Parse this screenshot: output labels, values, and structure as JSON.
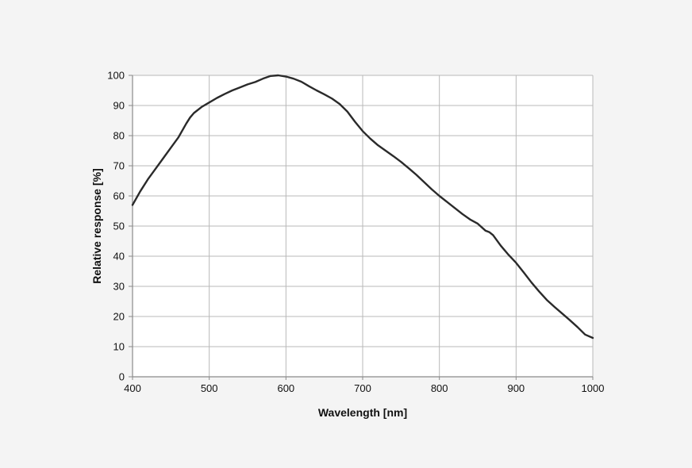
{
  "chart_data": {
    "type": "line",
    "title": "",
    "xlabel": "Wavelength [nm]",
    "ylabel": "Relative response  [%]",
    "xlim": [
      400,
      1000
    ],
    "ylim": [
      0,
      100
    ],
    "xticks": [
      400,
      500,
      600,
      700,
      800,
      900,
      1000
    ],
    "yticks": [
      0,
      10,
      20,
      30,
      40,
      50,
      60,
      70,
      80,
      90,
      100
    ],
    "xtick_labels": [
      "400",
      "500",
      "600",
      "700",
      "800",
      "900",
      "1000"
    ],
    "ytick_labels": [
      "0",
      "10",
      "20",
      "30",
      "40",
      "50",
      "60",
      "70",
      "80",
      "90",
      "100"
    ],
    "grid": true,
    "legend": "none",
    "colors": {
      "background": "#f4f4f4",
      "plot_background": "#ffffff",
      "grid": "#b8b8b8",
      "axis": "#8a8a8a",
      "line": "#2a2a2a"
    },
    "series": [
      {
        "x": [
          400,
          410,
          420,
          430,
          440,
          450,
          460,
          470,
          475,
          480,
          490,
          500,
          510,
          520,
          530,
          540,
          550,
          560,
          570,
          580,
          590,
          600,
          610,
          620,
          630,
          640,
          650,
          660,
          670,
          680,
          690,
          700,
          710,
          720,
          730,
          740,
          750,
          760,
          770,
          780,
          790,
          800,
          810,
          820,
          830,
          840,
          850,
          860,
          865,
          870,
          880,
          890,
          900,
          910,
          920,
          930,
          940,
          950,
          960,
          970,
          980,
          990,
          1000
        ],
        "y": [
          57,
          61.5,
          65.5,
          69,
          72.5,
          76,
          79.5,
          84,
          86,
          87.5,
          89.5,
          91,
          92.5,
          93.8,
          95,
          96,
          97,
          97.8,
          98.9,
          99.8,
          100,
          99.6,
          98.9,
          97.9,
          96.4,
          95,
          93.7,
          92.3,
          90.5,
          88,
          84.6,
          81.5,
          79,
          76.8,
          75,
          73.2,
          71.3,
          69.2,
          67,
          64.6,
          62.2,
          60,
          58,
          56,
          54,
          52.2,
          50.8,
          48.5,
          48,
          47,
          43.5,
          40.5,
          37.8,
          34.6,
          31.3,
          28.3,
          25.5,
          23.2,
          21,
          18.8,
          16.5,
          14,
          12.9
        ]
      }
    ]
  }
}
